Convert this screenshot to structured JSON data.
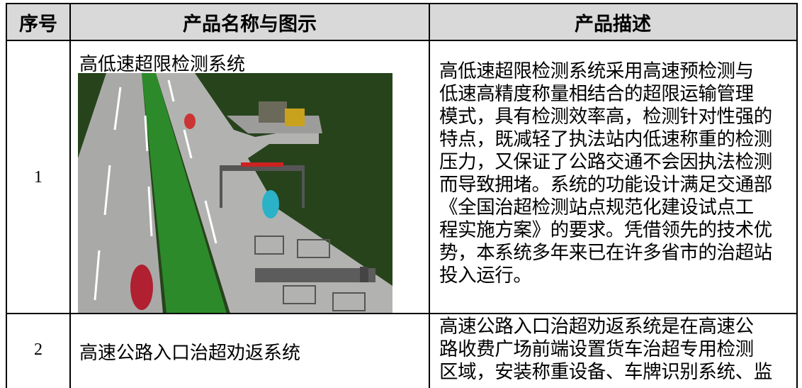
{
  "table": {
    "headers": [
      "序号",
      "产品名称与图示",
      "产品描述"
    ],
    "rows": [
      {
        "number": "1",
        "name": "高低速超限检测系统",
        "description": [
          "高低速超限检测系统采用高速预检测与",
          "低速高精度称量相结合的超限运输管理",
          "模式，具有检测效率高，检测针对性强的",
          "特点，既减轻了执法站内低速称重的检测",
          "压力，又保证了公路交通不会因执法检测",
          "而导致拥堵。系统的功能设计满足交通部",
          "《全国治超检测站点规范化建设试点工",
          "程实施方案》的要求。凭借领先的技术优",
          "势，本系统多年来已在许多省市的治超站",
          "投入运行。"
        ]
      },
      {
        "number": "2",
        "name": "高速公路入口治超劝返系统",
        "description": [
          "高速公路入口治超劝返系统是在高速公",
          "路收费广场前端设置货车治超专用检测",
          "区域，安装称重设备、车牌识别系统、监"
        ]
      }
    ]
  }
}
